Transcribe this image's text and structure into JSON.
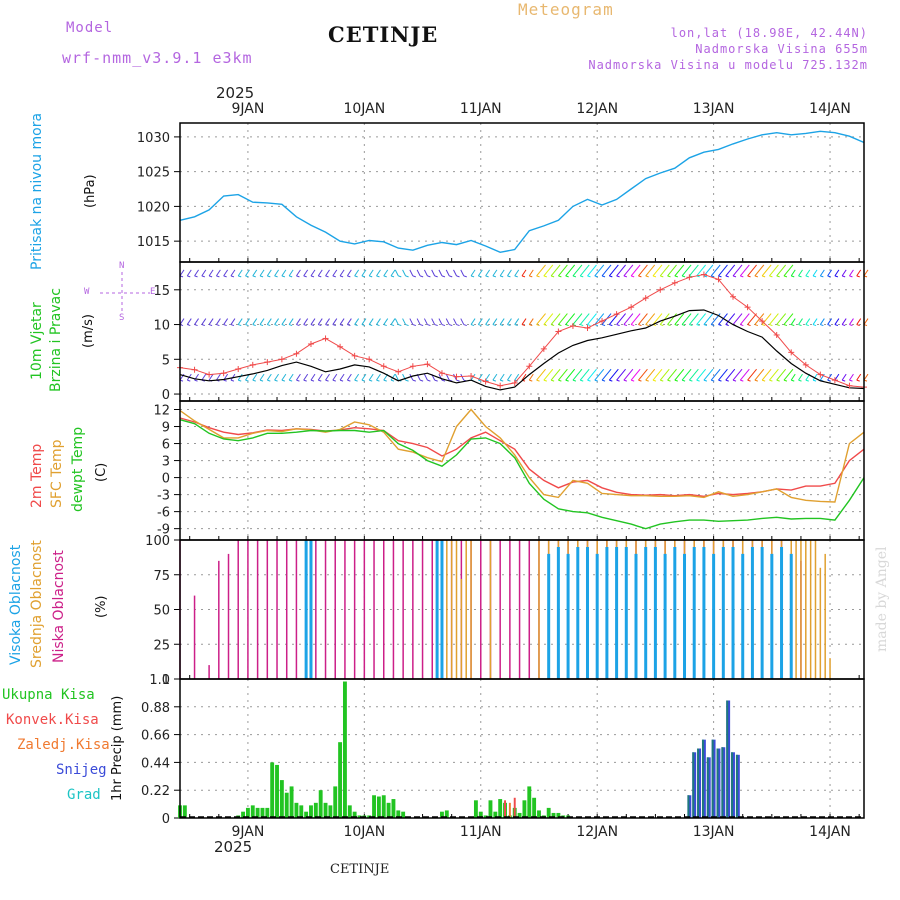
{
  "header": {
    "model_label": "Model",
    "model_name": "wrf-nmm_v3.9.1 e3km",
    "station": "CETINJE",
    "product": "Meteogram",
    "coords": "lon,lat (18.98E, 42.44N)",
    "elevation": "Nadmorska Visina 655m",
    "model_elevation": "Nadmorska Visina u modelu 725.132m",
    "year_top": "2025",
    "year_bottom": "2025",
    "footer_station": "CETINJE",
    "watermark": "made by Angel"
  },
  "days": [
    "9JAN",
    "10JAN",
    "11JAN",
    "12JAN",
    "13JAN",
    "14JAN"
  ],
  "compass": {
    "n": "N",
    "s": "S",
    "e": "E",
    "w": "W"
  },
  "panel_labels": {
    "pressure": "Pritisak na nivou mora",
    "pressure_unit": "(hPa)",
    "wind_a": "10m Vjetar",
    "wind_b": "Brzina i Pravac",
    "wind_unit": "(m/s)",
    "t2m": "2m Temp",
    "tsfc": "SFC Temp",
    "tdew": "dewpt Temp",
    "temp_unit": "(C)",
    "cl_high": "Visoka Oblacnost",
    "cl_mid": "Srednja Oblacnost",
    "cl_low": "Niska Oblacnost",
    "cloud_unit": "(%)",
    "pr_total": "Ukupna Kisa",
    "pr_conv": "Konvek.Kisa",
    "pr_frozen": "Zaledj.Kisa",
    "pr_snow": "Snijeg",
    "pr_grad": "Grad",
    "pr_unit": "1hr Precip (mm)"
  },
  "colors": {
    "pressure": "#1ca3e6",
    "t2m": "#f04a4a",
    "tsfc": "#e0a030",
    "tdew": "#22c422",
    "cl_high": "#1ca3e6",
    "cl_mid": "#e0a030",
    "cl_low": "#cc1f88",
    "pr_total": "#22c422",
    "pr_conv": "#f04a4a",
    "pr_frozen": "#f07a30",
    "pr_snow": "#3b4bd8",
    "pr_grad": "#1cc4c4",
    "wind_gust": "#f04a4a",
    "wind_speed": "#000000"
  },
  "chart_data": [
    {
      "panel": "pressure",
      "type": "line",
      "title": "Pritisak na nivou mora",
      "ylabel": "(hPa)",
      "ylim": [
        1012,
        1032
      ],
      "yticks": [
        1015,
        1020,
        1025,
        1030
      ],
      "x_hours": [
        0,
        3,
        6,
        9,
        12,
        15,
        18,
        21,
        24,
        27,
        30,
        33,
        36,
        39,
        42,
        45,
        48,
        51,
        54,
        57,
        60,
        63,
        66,
        69,
        72,
        75,
        78,
        81,
        84,
        87,
        90,
        93,
        96,
        99,
        102,
        105,
        108,
        111,
        114,
        117,
        120,
        123,
        126,
        129,
        132,
        135,
        138,
        141
      ],
      "values": [
        1018,
        1018.5,
        1019.5,
        1021.5,
        1021.7,
        1020.6,
        1020.5,
        1020.3,
        1018.5,
        1017.3,
        1016.3,
        1015,
        1014.6,
        1015.1,
        1014.9,
        1014,
        1013.7,
        1014.4,
        1014.8,
        1014.5,
        1015.1,
        1014.3,
        1013.4,
        1013.8,
        1016.5,
        1017.2,
        1018,
        1020,
        1021,
        1020.2,
        1021,
        1022.5,
        1024,
        1024.8,
        1025.5,
        1027,
        1027.8,
        1028.2,
        1029,
        1029.7,
        1030.3,
        1030.6,
        1030.3,
        1030.5,
        1030.8,
        1030.6,
        1030.1,
        1029.2
      ]
    },
    {
      "panel": "wind",
      "type": "line",
      "title": "10m Vjetar Brzina i Pravac",
      "ylabel": "(m/s)",
      "ylim": [
        -1,
        19
      ],
      "yticks": [
        0,
        5,
        10,
        15
      ],
      "x_hours": [
        0,
        3,
        6,
        9,
        12,
        15,
        18,
        21,
        24,
        27,
        30,
        33,
        36,
        39,
        42,
        45,
        48,
        51,
        54,
        57,
        60,
        63,
        66,
        69,
        72,
        75,
        78,
        81,
        84,
        87,
        90,
        93,
        96,
        99,
        102,
        105,
        108,
        111,
        114,
        117,
        120,
        123,
        126,
        129,
        132,
        135,
        138,
        141
      ],
      "series": [
        {
          "name": "speed",
          "values": [
            2.8,
            2.2,
            1.9,
            2.1,
            2.5,
            2.9,
            3.4,
            4.1,
            4.6,
            4.0,
            3.2,
            3.6,
            4.2,
            3.9,
            3.0,
            1.9,
            2.6,
            3.0,
            2.2,
            1.6,
            2.0,
            1.1,
            0.6,
            1.0,
            2.8,
            4.4,
            5.9,
            7.0,
            7.7,
            8.1,
            8.6,
            9.1,
            9.5,
            10.5,
            11.2,
            12.0,
            12.1,
            11.3,
            10.0,
            9.0,
            8.2,
            6.2,
            4.4,
            3.0,
            1.9,
            1.4,
            0.9,
            0.8
          ]
        },
        {
          "name": "gust",
          "values": [
            3.8,
            3.5,
            2.8,
            3.0,
            3.6,
            4.2,
            4.6,
            5.0,
            5.8,
            7.2,
            8.0,
            6.8,
            5.5,
            5.0,
            4.0,
            3.2,
            4.0,
            4.3,
            3.0,
            2.5,
            2.6,
            1.8,
            1.2,
            1.6,
            4.0,
            6.5,
            9.0,
            9.8,
            9.5,
            10.5,
            11.5,
            12.5,
            13.8,
            15.0,
            16.0,
            16.8,
            17.2,
            16.5,
            14.0,
            12.5,
            10.5,
            8.5,
            6.0,
            4.2,
            2.8,
            2.0,
            1.2,
            1.0
          ]
        }
      ],
      "barb_rows": [
        2,
        10,
        17
      ]
    },
    {
      "panel": "temperature",
      "type": "line",
      "title": "2m Temp / SFC Temp / dewpt Temp",
      "ylabel": "(C)",
      "ylim": [
        -11,
        13.5
      ],
      "yticks": [
        -9,
        -6,
        -3,
        0,
        3,
        6,
        9,
        12
      ],
      "x_hours": [
        0,
        3,
        6,
        9,
        12,
        15,
        18,
        21,
        24,
        27,
        30,
        33,
        36,
        39,
        42,
        45,
        48,
        51,
        54,
        57,
        60,
        63,
        66,
        69,
        72,
        75,
        78,
        81,
        84,
        87,
        90,
        93,
        96,
        99,
        102,
        105,
        108,
        111,
        114,
        117,
        120,
        123,
        126,
        129,
        132,
        135,
        138,
        141
      ],
      "series": [
        {
          "name": "2m Temp",
          "values": [
            10.5,
            9.8,
            8.8,
            8.0,
            7.6,
            7.9,
            8.4,
            8.3,
            8.6,
            8.5,
            8.2,
            8.4,
            8.8,
            8.6,
            8.3,
            6.5,
            6.0,
            5.3,
            3.8,
            5.0,
            7.0,
            8.0,
            6.5,
            5.0,
            1.5,
            -0.5,
            -1.8,
            -0.8,
            -0.5,
            -1.8,
            -2.6,
            -3.0,
            -3.1,
            -3.0,
            -3.2,
            -3.0,
            -3.3,
            -2.8,
            -3.0,
            -2.8,
            -2.5,
            -2.0,
            -2.2,
            -1.5,
            -1.5,
            -1.0,
            3.0,
            5.0
          ]
        },
        {
          "name": "SFC Temp",
          "values": [
            11.8,
            10.0,
            8.5,
            7.0,
            7.0,
            7.8,
            8.3,
            8.1,
            8.6,
            8.4,
            8.0,
            8.5,
            9.8,
            9.3,
            8.0,
            5.0,
            4.5,
            3.5,
            2.8,
            9.0,
            12.0,
            9.0,
            7.0,
            4.0,
            0.0,
            -3.0,
            -3.5,
            -0.5,
            -1.0,
            -2.8,
            -3.0,
            -3.2,
            -3.2,
            -3.3,
            -3.3,
            -3.2,
            -3.5,
            -2.5,
            -3.3,
            -3.0,
            -2.5,
            -2.0,
            -3.5,
            -4.0,
            -4.2,
            -4.3,
            6.0,
            8.0
          ]
        },
        {
          "name": "dewpt Temp",
          "values": [
            10.2,
            9.5,
            7.8,
            6.8,
            6.5,
            7.0,
            7.8,
            7.8,
            8.0,
            8.3,
            8.2,
            8.3,
            8.3,
            8.0,
            8.3,
            6.0,
            4.8,
            3.0,
            2.0,
            4.0,
            6.8,
            7.0,
            6.0,
            3.5,
            -1.0,
            -3.8,
            -5.5,
            -6.0,
            -6.2,
            -7.0,
            -7.6,
            -8.2,
            -9.0,
            -8.2,
            -7.8,
            -7.5,
            -7.5,
            -7.7,
            -7.6,
            -7.5,
            -7.2,
            -7.0,
            -7.3,
            -7.2,
            -7.2,
            -7.5,
            -4.0,
            0.0
          ]
        }
      ]
    },
    {
      "panel": "clouds",
      "type": "bar",
      "title": "Visoka / Srednja / Niska Oblacnost",
      "ylabel": "(%)",
      "ylim": [
        0,
        100
      ],
      "yticks": [
        0,
        25,
        50,
        75,
        100
      ],
      "series": [
        {
          "name": "Niska Oblacnost",
          "x_hours": [
            0,
            3,
            6,
            8,
            10,
            12,
            14,
            16,
            18,
            20,
            22,
            24,
            26,
            28,
            30,
            32,
            34,
            36,
            38,
            40,
            42,
            44,
            46,
            48,
            50,
            52,
            54,
            56,
            58,
            60,
            62,
            64,
            66,
            68,
            70,
            72,
            74,
            76,
            78,
            80,
            82,
            84,
            86,
            88,
            90,
            92,
            94,
            96,
            98,
            100,
            102,
            104,
            106,
            108,
            110,
            112,
            114,
            116,
            118,
            120,
            122,
            124,
            126,
            128
          ],
          "values": [
            100,
            60,
            10,
            85,
            90,
            100,
            100,
            100,
            100,
            100,
            100,
            100,
            100,
            100,
            100,
            100,
            100,
            100,
            100,
            100,
            100,
            100,
            100,
            100,
            100,
            100,
            100,
            100,
            100,
            100,
            100,
            100,
            100,
            100,
            100,
            100,
            100,
            100,
            100,
            100,
            100,
            100,
            100,
            100,
            100,
            100,
            100,
            100,
            100,
            100,
            100,
            100,
            100,
            100,
            100,
            100,
            100,
            100,
            100,
            100,
            100,
            100,
            75,
            85
          ]
        },
        {
          "name": "Srednja Oblacnost",
          "x_hours": [
            55,
            56,
            57,
            58,
            59,
            60,
            64,
            74,
            76,
            78,
            80,
            82,
            84,
            86,
            88,
            90,
            92,
            94,
            96,
            98,
            100,
            102,
            104,
            106,
            108,
            110,
            112,
            114,
            116,
            118,
            120,
            122,
            124,
            126,
            127,
            128,
            129,
            130,
            131,
            132,
            133,
            134
          ],
          "values": [
            100,
            100,
            100,
            72,
            100,
            100,
            100,
            100,
            100,
            100,
            100,
            100,
            100,
            100,
            100,
            100,
            100,
            100,
            100,
            100,
            100,
            100,
            100,
            100,
            100,
            100,
            100,
            100,
            100,
            100,
            100,
            100,
            100,
            100,
            100,
            100,
            100,
            100,
            100,
            80,
            90,
            15
          ]
        },
        {
          "name": "Visoka Oblacnost",
          "x_hours": [
            26,
            27,
            53,
            54,
            76,
            78,
            80,
            82,
            84,
            86,
            88,
            90,
            92,
            94,
            96,
            98,
            100,
            102,
            104,
            106,
            108,
            110,
            112,
            114,
            116,
            118,
            120,
            122,
            124,
            126
          ],
          "values": [
            100,
            100,
            100,
            100,
            90,
            95,
            90,
            95,
            95,
            90,
            95,
            95,
            95,
            90,
            95,
            95,
            90,
            95,
            90,
            95,
            95,
            90,
            95,
            95,
            90,
            95,
            95,
            90,
            95,
            90
          ]
        }
      ]
    },
    {
      "panel": "precipitation",
      "type": "bar",
      "title": "1hr Precip",
      "ylabel": "1hr Precip (mm)",
      "ylim": [
        0,
        1.1
      ],
      "yticks": [
        0,
        0.22,
        0.44,
        0.66,
        0.88,
        1.1
      ],
      "series": [
        {
          "name": "Ukupna Kisa",
          "x_hours": [
            0,
            1,
            12,
            13,
            14,
            15,
            16,
            17,
            18,
            19,
            20,
            21,
            22,
            23,
            24,
            25,
            26,
            27,
            28,
            29,
            30,
            31,
            32,
            33,
            34,
            35,
            36,
            37,
            38,
            39,
            40,
            41,
            42,
            43,
            44,
            45,
            46,
            54,
            55,
            61,
            62,
            63,
            64,
            65,
            66,
            67,
            68,
            69,
            70,
            71,
            72,
            73,
            74,
            75,
            76,
            77,
            78,
            79,
            80
          ],
          "values": [
            0.1,
            0.1,
            0.02,
            0.05,
            0.08,
            0.1,
            0.08,
            0.08,
            0.08,
            0.44,
            0.42,
            0.3,
            0.2,
            0.25,
            0.12,
            0.1,
            0.05,
            0.1,
            0.12,
            0.22,
            0.12,
            0.1,
            0.25,
            0.6,
            1.08,
            0.1,
            0.05,
            0.02,
            0.02,
            0.02,
            0.18,
            0.17,
            0.18,
            0.12,
            0.15,
            0.06,
            0.05,
            0.05,
            0.06,
            0.14,
            0.05,
            0.02,
            0.14,
            0.05,
            0.15,
            0.12,
            0.02,
            0.08,
            0.04,
            0.14,
            0.25,
            0.16,
            0.06,
            0.02,
            0.08,
            0.04,
            0.04,
            0.02,
            0.02
          ]
        },
        {
          "name": "Snijeg",
          "x_hours": [
            105,
            106,
            107,
            108,
            109,
            110,
            111,
            112,
            113,
            114,
            115
          ],
          "values": [
            0.18,
            0.52,
            0.55,
            0.62,
            0.48,
            0.62,
            0.55,
            0.56,
            0.93,
            0.52,
            0.5
          ]
        },
        {
          "name": "Konvek.Kisa",
          "x_hours": [
            67,
            69
          ],
          "values": [
            0.14,
            0.16
          ]
        },
        {
          "name": "Zaledj.Kisa",
          "x_hours": [
            68
          ],
          "values": [
            0.12
          ]
        }
      ]
    }
  ]
}
